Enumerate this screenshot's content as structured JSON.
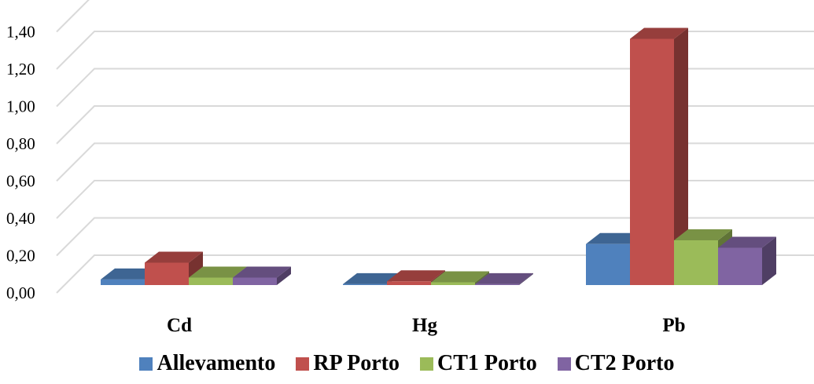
{
  "chart_data": {
    "type": "bar",
    "title": "",
    "xlabel": "",
    "ylabel": "",
    "ylim": [
      0,
      1.4
    ],
    "yticks": [
      "0,00",
      "0,20",
      "0,40",
      "0,60",
      "0,80",
      "1,00",
      "1,20",
      "1,40"
    ],
    "categories": [
      "Cd",
      "Hg",
      "Pb"
    ],
    "grid": true,
    "legend_position": "bottom",
    "style": "3d-clustered-column",
    "series": [
      {
        "name": "Allevamento",
        "color": "#4F81BD",
        "values": [
          0.03,
          0.005,
          0.22
        ]
      },
      {
        "name": "RP Porto",
        "color": "#C0504D",
        "values": [
          0.12,
          0.02,
          1.32
        ]
      },
      {
        "name": "CT1 Porto",
        "color": "#9BBB59",
        "values": [
          0.04,
          0.015,
          0.24
        ]
      },
      {
        "name": "CT2 Porto",
        "color": "#8064A2",
        "values": [
          0.04,
          0.005,
          0.2
        ]
      }
    ]
  }
}
